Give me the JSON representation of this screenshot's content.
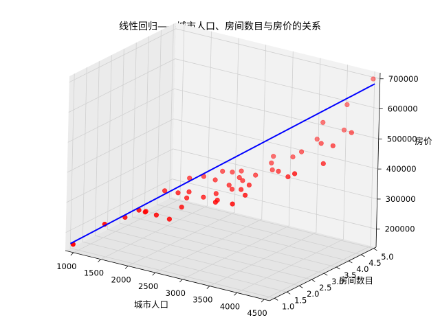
{
  "chart_data": {
    "type": "scatter",
    "projection": "3d",
    "title": "线性回归——城市人口、房间数目与房价的关系",
    "xlabel": "城市人口",
    "ylabel": "房间数目",
    "zlabel": "房价",
    "xlim": [
      850,
      4600
    ],
    "ylim": [
      0.8,
      5.1
    ],
    "zlim": [
      140000,
      720000
    ],
    "xticks": [
      "1000",
      "1500",
      "2000",
      "2500",
      "3000",
      "3500",
      "4000",
      "4500"
    ],
    "yticks": [
      "1.0",
      "1.5",
      "2.0",
      "2.5",
      "3.0",
      "3.5",
      "4.0",
      "4.5",
      "5.0"
    ],
    "zticks": [
      "200000",
      "300000",
      "400000",
      "500000",
      "600000",
      "700000"
    ],
    "grid": true,
    "colors": {
      "points": "#ff0000",
      "fit_line": "#0000ff",
      "pane_back": "#f2f2f2",
      "pane_side": "#ebebeb",
      "pane_floor": "#e5e5e5",
      "grid": "#d0d0d0"
    },
    "series": [
      {
        "kind": "scatter",
        "points": [
          [
            900,
            1.0,
            155000
          ],
          [
            1200,
            1.6,
            210000
          ],
          [
            1390,
            2.0,
            225000
          ],
          [
            1500,
            2.6,
            225000
          ],
          [
            1640,
            2.0,
            260000
          ],
          [
            1700,
            2.9,
            290000
          ],
          [
            1800,
            1.9,
            265000
          ],
          [
            1880,
            3.5,
            315000
          ],
          [
            1960,
            2.0,
            258000
          ],
          [
            1990,
            2.8,
            300000
          ],
          [
            2050,
            3.7,
            320000
          ],
          [
            2100,
            3.0,
            300000
          ],
          [
            2150,
            2.8,
            290000
          ],
          [
            2200,
            2.0,
            255000
          ],
          [
            2240,
            2.4,
            280000
          ],
          [
            2300,
            3.9,
            340000
          ],
          [
            2350,
            3.5,
            330000
          ],
          [
            2410,
            2.9,
            300000
          ],
          [
            2480,
            3.9,
            345000
          ],
          [
            2550,
            3.1,
            310000
          ],
          [
            2600,
            4.0,
            350000
          ],
          [
            2650,
            3.4,
            330000
          ],
          [
            2700,
            3.7,
            345000
          ],
          [
            2750,
            3.3,
            325000
          ],
          [
            2800,
            2.6,
            320000
          ],
          [
            2850,
            3.5,
            350000
          ],
          [
            2900,
            2.3,
            330000
          ],
          [
            2950,
            3.8,
            360000
          ],
          [
            3000,
            4.4,
            400000
          ],
          [
            3050,
            3.0,
            350000
          ],
          [
            3100,
            4.1,
            395000
          ],
          [
            3150,
            3.1,
            365000
          ],
          [
            3210,
            3.9,
            385000
          ],
          [
            3300,
            2.1,
            350000
          ],
          [
            3350,
            2.5,
            365000
          ],
          [
            3400,
            4.3,
            420000
          ],
          [
            3500,
            3.5,
            410000
          ],
          [
            3600,
            4.2,
            450000
          ],
          [
            3700,
            4.6,
            480000
          ],
          [
            3800,
            4.6,
            540000
          ],
          [
            3900,
            3.0,
            430000
          ],
          [
            4000,
            4.1,
            500000
          ],
          [
            4100,
            4.8,
            520000
          ],
          [
            4100,
            4.9,
            600000
          ],
          [
            4200,
            2.6,
            470000
          ],
          [
            4350,
            3.8,
            520000
          ],
          [
            4450,
            3.2,
            490000
          ],
          [
            4550,
            4.1,
            560000
          ],
          [
            4520,
            5.0,
            700000
          ]
        ]
      },
      {
        "kind": "line",
        "points": [
          [
            850,
            1.0,
            155000
          ],
          [
            4550,
            5.0,
            685000
          ]
        ]
      }
    ]
  }
}
